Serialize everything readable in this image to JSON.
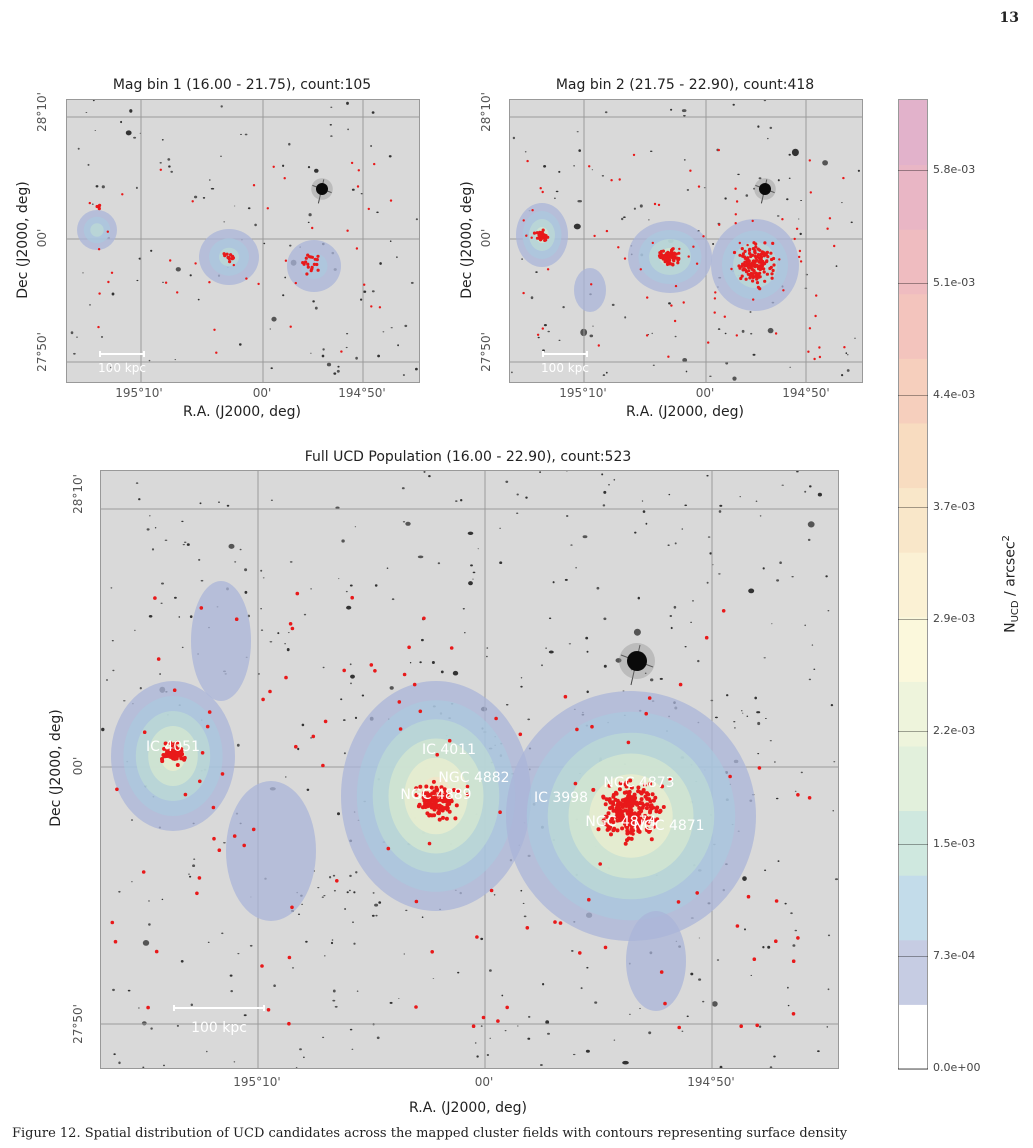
{
  "page_number": "13",
  "panels": {
    "top_left": {
      "title": "Mag bin 1 (16.00 - 21.75), count:105",
      "xlabel": "R.A. (J2000, deg)",
      "ylabel": "Dec (J2000, deg)",
      "xticks": [
        "195°10'",
        "00'",
        "194°50'"
      ],
      "yticks": [
        "28°10'",
        "00'",
        "27°50'"
      ],
      "scalebar": "100 kpc"
    },
    "top_right": {
      "title": "Mag bin 2 (21.75 - 22.90), count:418",
      "xlabel": "R.A. (J2000, deg)",
      "ylabel": "Dec (J2000, deg)",
      "xticks": [
        "195°10'",
        "00'",
        "194°50'"
      ],
      "yticks": [
        "28°10'",
        "00'",
        "27°50'"
      ],
      "scalebar": "100 kpc"
    },
    "bottom": {
      "title": "Full UCD Population (16.00 - 22.90), count:523",
      "xlabel": "R.A. (J2000, deg)",
      "ylabel": "Dec (J2000, deg)",
      "xticks": [
        "195°10'",
        "00'",
        "194°50'"
      ],
      "yticks": [
        "28°10'",
        "00'",
        "27°50'"
      ],
      "scalebar": "100 kpc",
      "galaxy_labels": [
        "IC 4051",
        "IC 4011",
        "NGC 4882",
        "NGC 4889",
        "IC 3998",
        "NGC 4873",
        "NGC 4874",
        "NGC 4871"
      ]
    }
  },
  "colorbar": {
    "label_main": "N",
    "label_sub": "UCD",
    "label_rest": " / arcsec",
    "label_sup": "2",
    "ticks": [
      "0.0e+00",
      "7.3e-04",
      "1.5e-03",
      "2.2e-03",
      "2.9e-03",
      "3.7e-03",
      "4.4e-03",
      "5.1e-03",
      "5.8e-03"
    ],
    "colors": [
      "#ffffff",
      "#c6cce3",
      "#c3dcea",
      "#cfe8df",
      "#e2f0dc",
      "#eef4dc",
      "#fbf8dc",
      "#fbf1d4",
      "#f9e7c9",
      "#f8dcc0",
      "#f6cfbd",
      "#f3c4bd",
      "#efbcc0",
      "#e9b6c5",
      "#e2b2cb"
    ]
  },
  "caption": "Figure 12. Spatial distribution of UCD candidates across the mapped cluster fields with contours representing surface density"
}
